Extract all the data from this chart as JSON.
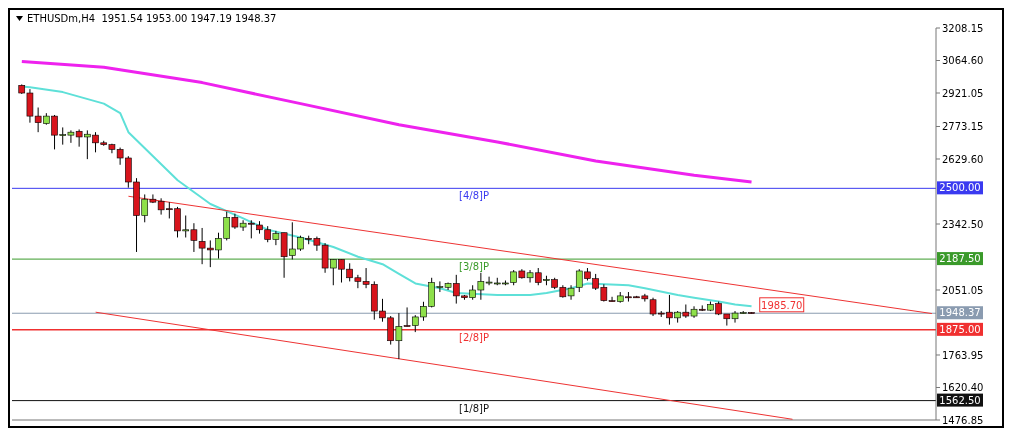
{
  "chart_data": {
    "type": "candlestick",
    "title": "ETHUSDm,H4  1951.54 1953.00 1947.19 1948.37",
    "categories": [
      null,
      null,
      null,
      null,
      null,
      null,
      null,
      null,
      null,
      null,
      null,
      null,
      null,
      null,
      null,
      null,
      null,
      null,
      null,
      null,
      null,
      null,
      null,
      null,
      null,
      null,
      null,
      null,
      null,
      null,
      null,
      null,
      null,
      null,
      null,
      null,
      null,
      null,
      null,
      null,
      null,
      null,
      null,
      null,
      null,
      null,
      null,
      null,
      null,
      null,
      null,
      null,
      null,
      null,
      null,
      null,
      null,
      null,
      null,
      null,
      null,
      null,
      null,
      null,
      null,
      null,
      null,
      null,
      null,
      null,
      null,
      null,
      null,
      null,
      null,
      null,
      null,
      null,
      null,
      null,
      null,
      null,
      null,
      null,
      null,
      null,
      null,
      null,
      null,
      null,
      null,
      null,
      null,
      null,
      null,
      null,
      null,
      null,
      null,
      null,
      null,
      null,
      null,
      null,
      null,
      null,
      null,
      null,
      null,
      null,
      null,
      null
    ],
    "ohlc": [
      [
        2955,
        2959,
        2917,
        2921
      ],
      [
        2921,
        2938,
        2790,
        2819
      ],
      [
        2819,
        2857,
        2748,
        2790
      ],
      [
        2786,
        2832,
        2781,
        2819
      ],
      [
        2819,
        2824,
        2672,
        2735
      ],
      [
        2735,
        2769,
        2693,
        2737
      ],
      [
        2735,
        2756,
        2701,
        2748
      ],
      [
        2752,
        2760,
        2684,
        2727
      ],
      [
        2727,
        2756,
        2629,
        2739
      ],
      [
        2735,
        2748,
        2659,
        2701
      ],
      [
        2701,
        2710,
        2688,
        2693
      ],
      [
        2693,
        2697,
        2655,
        2672
      ],
      [
        2672,
        2680,
        2604,
        2634
      ],
      [
        2634,
        2642,
        2503,
        2528
      ],
      [
        2528,
        2545,
        2219,
        2380
      ],
      [
        2380,
        2473,
        2350,
        2452
      ],
      [
        2452,
        2473,
        2435,
        2439
      ],
      [
        2443,
        2456,
        2384,
        2405
      ],
      [
        2410,
        2439,
        2367,
        2409
      ],
      [
        2410,
        2418,
        2283,
        2312
      ],
      [
        2312,
        2380,
        2283,
        2317
      ],
      [
        2317,
        2346,
        2219,
        2270
      ],
      [
        2266,
        2325,
        2165,
        2236
      ],
      [
        2236,
        2270,
        2152,
        2228
      ],
      [
        2228,
        2304,
        2190,
        2279
      ],
      [
        2279,
        2397,
        2270,
        2372
      ],
      [
        2372,
        2388,
        2321,
        2329
      ],
      [
        2329,
        2359,
        2312,
        2346
      ],
      [
        2346,
        2359,
        2279,
        2342
      ],
      [
        2338,
        2355,
        2300,
        2317
      ],
      [
        2317,
        2333,
        2262,
        2274
      ],
      [
        2274,
        2312,
        2249,
        2300
      ],
      [
        2304,
        2304,
        2105,
        2198
      ],
      [
        2203,
        2350,
        2186,
        2232
      ],
      [
        2232,
        2291,
        2224,
        2283
      ],
      [
        2279,
        2291,
        2253,
        2276
      ],
      [
        2279,
        2287,
        2224,
        2249
      ],
      [
        2249,
        2258,
        2127,
        2148
      ],
      [
        2148,
        2186,
        2072,
        2186
      ],
      [
        2186,
        2186,
        2084,
        2143
      ],
      [
        2143,
        2169,
        2089,
        2105
      ],
      [
        2105,
        2118,
        2059,
        2089
      ],
      [
        2089,
        2148,
        2059,
        2076
      ],
      [
        2076,
        2089,
        1920,
        1958
      ],
      [
        1958,
        2012,
        1911,
        1928
      ],
      [
        1928,
        1936,
        1810,
        1827
      ],
      [
        1827,
        1949,
        1746,
        1890
      ],
      [
        1894,
        1974,
        1890,
        1892
      ],
      [
        1894,
        1940,
        1865,
        1932
      ],
      [
        1932,
        1999,
        1915,
        1979
      ],
      [
        1979,
        2105,
        1974,
        2084
      ],
      [
        2063,
        2089,
        2042,
        2066
      ],
      [
        2063,
        2084,
        2051,
        2080
      ],
      [
        2080,
        2118,
        1991,
        2025
      ],
      [
        2025,
        2029,
        2008,
        2017
      ],
      [
        2017,
        2072,
        2008,
        2051
      ],
      [
        2051,
        2127,
        2008,
        2089
      ],
      [
        2084,
        2110,
        2072,
        2086
      ],
      [
        2080,
        2105,
        2072,
        2082
      ],
      [
        2080,
        2093,
        2072,
        2082
      ],
      [
        2084,
        2139,
        2072,
        2131
      ],
      [
        2135,
        2143,
        2101,
        2105
      ],
      [
        2105,
        2139,
        2084,
        2127
      ],
      [
        2127,
        2148,
        2072,
        2084
      ],
      [
        2093,
        2114,
        2072,
        2097
      ],
      [
        2097,
        2105,
        2055,
        2063
      ],
      [
        2063,
        2072,
        2017,
        2021
      ],
      [
        2025,
        2072,
        2008,
        2059
      ],
      [
        2063,
        2143,
        2042,
        2135
      ],
      [
        2131,
        2148,
        2093,
        2101
      ],
      [
        2101,
        2122,
        2051,
        2059
      ],
      [
        2063,
        2076,
        2000,
        2004
      ],
      [
        2004,
        2021,
        2000,
        2002
      ],
      [
        2000,
        2042,
        1995,
        2025
      ],
      [
        2021,
        2042,
        2000,
        2019
      ],
      [
        2021,
        2025,
        2017,
        2020
      ],
      [
        2025,
        2034,
        2000,
        2012
      ],
      [
        2008,
        2017,
        1936,
        1945
      ],
      [
        1949,
        1958,
        1932,
        1947
      ],
      [
        1953,
        2029,
        1898,
        1928
      ],
      [
        1928,
        1958,
        1907,
        1953
      ],
      [
        1953,
        1987,
        1928,
        1936
      ],
      [
        1936,
        1979,
        1928,
        1966
      ],
      [
        1966,
        1983,
        1958,
        1964
      ],
      [
        1962,
        2000,
        1958,
        1987
      ],
      [
        1991,
        2000,
        1940,
        1945
      ],
      [
        1945,
        1945,
        1894,
        1924
      ],
      [
        1924,
        1958,
        1907,
        1949
      ],
      [
        1949,
        1958,
        1945,
        1951
      ],
      [
        1951.54,
        1953,
        1947.19,
        1948.37
      ],
      null,
      null,
      null,
      null,
      null,
      null,
      null,
      null,
      null,
      null,
      null,
      null,
      null,
      null,
      null,
      null,
      null,
      null,
      null,
      null,
      null,
      null
    ],
    "colors": [
      "#d8141c",
      "#d8141c",
      "#d8141c",
      "#8ee04a",
      "#d8141c",
      "#8ee04a",
      "#8ee04a",
      "#d8141c",
      "#8ee04a",
      "#d8141c",
      "#d8141c",
      "#d8141c",
      "#d8141c",
      "#d8141c",
      "#d8141c",
      "#8ee04a",
      "#d8141c",
      "#d8141c",
      "#d8141c",
      "#d8141c",
      "#8ee04a",
      "#d8141c",
      "#d8141c",
      "#d8141c",
      "#8ee04a",
      "#8ee04a",
      "#d8141c",
      "#8ee04a",
      "#d8141c",
      "#d8141c",
      "#d8141c",
      "#8ee04a",
      "#d8141c",
      "#8ee04a",
      "#8ee04a",
      "#d8141c",
      "#d8141c",
      "#d8141c",
      "#8ee04a",
      "#d8141c",
      "#d8141c",
      "#d8141c",
      "#d8141c",
      "#d8141c",
      "#d8141c",
      "#d8141c",
      "#8ee04a",
      "#d8141c",
      "#8ee04a",
      "#8ee04a",
      "#8ee04a",
      "#8ee04a",
      "#8ee04a",
      "#d8141c",
      "#d8141c",
      "#8ee04a",
      "#8ee04a",
      "#8ee04a",
      "#8ee04a",
      "#8ee04a",
      "#8ee04a",
      "#d8141c",
      "#8ee04a",
      "#d8141c",
      "#8ee04a",
      "#d8141c",
      "#d8141c",
      "#8ee04a",
      "#8ee04a",
      "#d8141c",
      "#d8141c",
      "#d8141c",
      "#d8141c",
      "#8ee04a",
      "#d8141c",
      "#d8141c",
      "#d8141c",
      "#d8141c",
      "#d8141c",
      "#d8141c",
      "#8ee04a",
      "#d8141c",
      "#8ee04a",
      "#d8141c",
      "#8ee04a",
      "#d8141c",
      "#d8141c",
      "#8ee04a",
      "#8ee04a",
      "#d8141c",
      null,
      null,
      null,
      null,
      null,
      null,
      null,
      null,
      null,
      null,
      null,
      null,
      null,
      null,
      null,
      null,
      null,
      null,
      null,
      null,
      null,
      null
    ],
    "series": [
      {
        "type": "line",
        "color": "#5ee0d8",
        "values": [
          2950,
          2946,
          null,
          null,
          null,
          2925,
          null,
          null,
          null,
          null,
          2874,
          null,
          2832,
          2748,
          null,
          null,
          2642,
          null,
          null,
          2536,
          null,
          null,
          null,
          2431,
          null,
          null,
          null,
          2367,
          null,
          null,
          2317,
          null,
          null,
          null,
          2283,
          null,
          null,
          null,
          2241,
          null,
          null,
          2198,
          null,
          null,
          2165,
          null,
          2122,
          null,
          2080,
          null,
          null,
          2059,
          null,
          2038,
          null,
          null,
          null,
          null,
          2029,
          null,
          null,
          null,
          2029,
          null,
          2038,
          null,
          null,
          2059,
          null,
          2080,
          null,
          null,
          null,
          null,
          2072,
          null,
          2059,
          null,
          null,
          null,
          2029,
          null,
          2017,
          null,
          null,
          2000,
          null,
          1987,
          null,
          1979,
          null,
          null,
          null,
          null,
          null,
          null,
          null,
          null,
          null,
          null,
          null,
          null,
          null,
          null,
          null,
          null,
          null,
          null,
          null,
          null,
          null,
          null
        ]
      },
      {
        "type": "line",
        "color": "#ee22ee",
        "values": [
          3060,
          null,
          null,
          null,
          null,
          null,
          null,
          null,
          null,
          null,
          3035,
          null,
          null,
          null,
          null,
          null,
          null,
          null,
          null,
          null,
          null,
          null,
          2967,
          null,
          null,
          null,
          null,
          null,
          null,
          null,
          null,
          null,
          null,
          null,
          2874,
          null,
          null,
          null,
          null,
          null,
          null,
          null,
          null,
          null,
          null,
          null,
          2781,
          null,
          null,
          null,
          null,
          null,
          null,
          null,
          null,
          null,
          null,
          null,
          2705,
          null,
          null,
          null,
          null,
          null,
          null,
          null,
          null,
          null,
          null,
          null,
          2621,
          null,
          null,
          null,
          null,
          null,
          null,
          null,
          null,
          null,
          null,
          null,
          2558,
          null,
          null,
          null,
          null,
          null,
          null,
          2528,
          null,
          null,
          null,
          null,
          null,
          null,
          null,
          null,
          null,
          null,
          null,
          null,
          null,
          null,
          null,
          null,
          null,
          null,
          null,
          null,
          null,
          null
        ]
      },
      {
        "type": "line",
        "color": "#ee3333",
        "values": [
          null,
          null,
          null,
          null,
          null,
          null,
          null,
          null,
          null,
          null,
          null,
          null,
          null,
          2465,
          null,
          null,
          null,
          null,
          null,
          null,
          null,
          null,
          null,
          null,
          null,
          null,
          null,
          null,
          null,
          null,
          null,
          null,
          null,
          null,
          null,
          null,
          null,
          null,
          null,
          null,
          null,
          null,
          null,
          null,
          null,
          null,
          null,
          null,
          null,
          null,
          null,
          null,
          null,
          null,
          null,
          null,
          null,
          null,
          null,
          null,
          null,
          null,
          null,
          null,
          null,
          null,
          null,
          null,
          null,
          null,
          null,
          null,
          null,
          null,
          null,
          null,
          null,
          null,
          null,
          null,
          null,
          null,
          null,
          null,
          null,
          null,
          null,
          null,
          null,
          null,
          null,
          null,
          null,
          null,
          null,
          null,
          null,
          null,
          null,
          null,
          null,
          null,
          null,
          null,
          null,
          null,
          null,
          null,
          null,
          null,
          null,
          1947
        ]
      },
      {
        "type": "line",
        "color": "#ee3333",
        "values": [
          null,
          null,
          null,
          null,
          null,
          null,
          null,
          null,
          null,
          1953,
          null,
          null,
          null,
          null,
          null,
          null,
          null,
          null,
          null,
          null,
          null,
          null,
          null,
          null,
          null,
          null,
          null,
          null,
          null,
          null,
          null,
          null,
          null,
          null,
          null,
          null,
          null,
          null,
          null,
          null,
          null,
          null,
          null,
          null,
          null,
          null,
          null,
          null,
          null,
          null,
          null,
          null,
          null,
          null,
          null,
          null,
          null,
          null,
          null,
          null,
          null,
          null,
          null,
          null,
          null,
          null,
          null,
          null,
          null,
          null,
          null,
          null,
          null,
          null,
          null,
          null,
          null,
          null,
          null,
          null,
          null,
          null,
          null,
          null,
          null,
          null,
          null,
          null,
          null,
          null,
          null,
          null,
          null,
          null,
          1480,
          null,
          null,
          null,
          null,
          null,
          null,
          null,
          null,
          null,
          null,
          null,
          null,
          null,
          null,
          null,
          null,
          null
        ]
      }
    ],
    "ylim": [
      1476.85,
      3208.15
    ],
    "yticks": [
      {
        "value": 3208.15,
        "label": "3208.15"
      },
      {
        "value": 3064.6,
        "label": "3064.60"
      },
      {
        "value": 2921.05,
        "label": "2921.05"
      },
      {
        "value": 2773.15,
        "label": "2773.15"
      },
      {
        "value": 2629.6,
        "label": "2629.60"
      },
      {
        "value": 2342.5,
        "label": "2342.50"
      },
      {
        "value": 2051.05,
        "label": "2051.05"
      },
      {
        "value": 1763.95,
        "label": "1763.95"
      },
      {
        "value": 1620.4,
        "label": "1620.40"
      },
      {
        "value": 1476.85,
        "label": "1476.85"
      }
    ],
    "ref_lines": [
      {
        "axis": "y",
        "value": 2500,
        "label": "[4/8]P",
        "color": "#3a3af0"
      },
      {
        "axis": "y",
        "value": 2187.5,
        "label": "[3/8]P",
        "color": "#3a9a2a"
      },
      {
        "axis": "y",
        "value": 1948.37,
        "color": "#8a9bb0"
      },
      {
        "axis": "y",
        "value": 1875,
        "label": "[2/8]P",
        "color": "#f03030"
      },
      {
        "axis": "y",
        "value": 1562.5,
        "label": "[1/8]P",
        "color": "#111111"
      }
    ],
    "annotations": [
      {
        "text": "1985.70",
        "y": 1985.7
      },
      "2500.00",
      "2187.50",
      "1948.37",
      "1875.00",
      "1562.50"
    ],
    "tick_labels": "y",
    "grid": false,
    "legend": false
  }
}
